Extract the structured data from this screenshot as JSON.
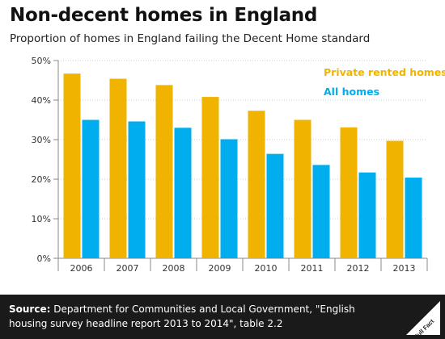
{
  "title": "Non-decent homes in England",
  "subtitle": "Proportion of homes in England failing the Decent Home standard",
  "colors": {
    "private": "#f0b400",
    "all": "#00aeef",
    "axis": "#888888",
    "grid": "#cccccc",
    "footer_bg": "#1a1a1a"
  },
  "footer": {
    "source_label": "Source:",
    "source_text": "Department for Communities and Local Government, \"English housing survey headline report 2013 to 2014\", table 2.2"
  },
  "logo": {
    "text": "Full Fact",
    "icon": "full-fact-logo-icon"
  },
  "chart_data": {
    "type": "bar",
    "categories": [
      "2006",
      "2007",
      "2008",
      "2009",
      "2010",
      "2011",
      "2012",
      "2013"
    ],
    "series": [
      {
        "name": "Private rented homes",
        "values": [
          46.7,
          45.4,
          43.8,
          40.8,
          37.3,
          35.0,
          33.1,
          29.7
        ],
        "color": "#f0b400"
      },
      {
        "name": "All homes",
        "values": [
          35.0,
          34.6,
          33.0,
          30.1,
          26.4,
          23.6,
          21.7,
          20.4
        ],
        "color": "#00aeef"
      }
    ],
    "ylim": [
      0,
      50
    ],
    "yticks": [
      "0%",
      "10%",
      "20%",
      "30%",
      "40%",
      "50%"
    ],
    "grid": true,
    "legend": "top-right"
  }
}
